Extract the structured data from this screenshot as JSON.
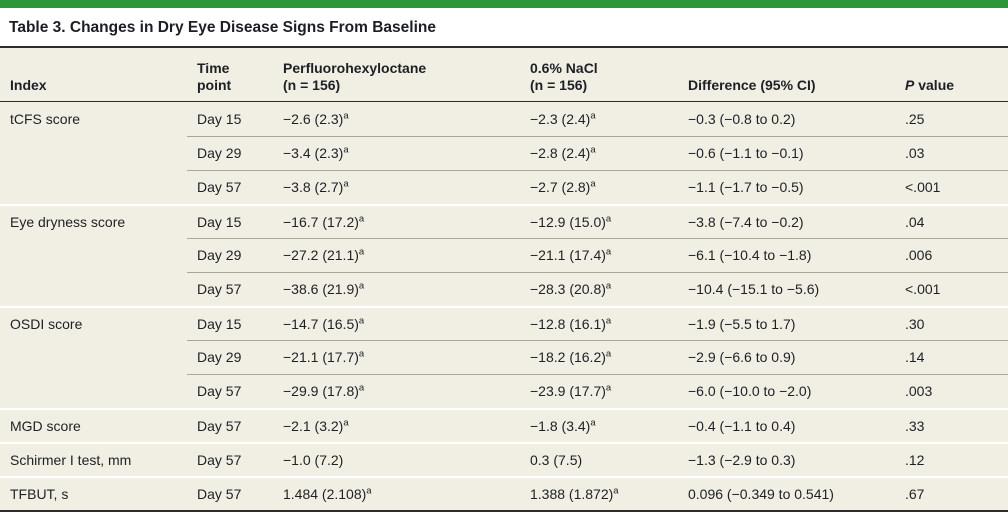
{
  "title": "Table 3. Changes in Dry Eye Disease Signs From Baseline",
  "colors": {
    "accent_green": "#2e9639",
    "row_background": "#f1eee3",
    "rule_dark": "#2e2d29",
    "text": "#1d2025"
  },
  "header": {
    "index": "Index",
    "time_line1": "Time",
    "time_line2": "point",
    "arm1_line1": "Perfluorohexyloctane",
    "arm1_line2": "(n = 156)",
    "arm2_line1": "0.6% NaCl",
    "arm2_line2": "(n = 156)",
    "difference": "Difference (95% CI)",
    "p_italic": "P",
    "p_rest": " value"
  },
  "rows": [
    {
      "index": "tCFS score",
      "time": "Day 15",
      "arm1": "−2.6 (2.3)",
      "arm1_sup": "a",
      "arm2": "−2.3 (2.4)",
      "arm2_sup": "a",
      "diff": "−0.3 (−0.8 to 0.2)",
      "p": ".25"
    },
    {
      "index": "",
      "time": "Day 29",
      "arm1": "−3.4 (2.3)",
      "arm1_sup": "a",
      "arm2": "−2.8 (2.4)",
      "arm2_sup": "a",
      "diff": "−0.6 (−1.1 to −0.1)",
      "p": ".03"
    },
    {
      "index": "",
      "time": "Day 57",
      "arm1": "−3.8 (2.7)",
      "arm1_sup": "a",
      "arm2": "−2.7 (2.8)",
      "arm2_sup": "a",
      "diff": "−1.1 (−1.7 to −0.5)",
      "p": "<.001"
    },
    {
      "index": "Eye dryness score",
      "time": "Day 15",
      "arm1": "−16.7 (17.2)",
      "arm1_sup": "a",
      "arm2": "−12.9 (15.0)",
      "arm2_sup": "a",
      "diff": "−3.8 (−7.4 to −0.2)",
      "p": ".04"
    },
    {
      "index": "",
      "time": "Day 29",
      "arm1": "−27.2 (21.1)",
      "arm1_sup": "a",
      "arm2": "−21.1 (17.4)",
      "arm2_sup": "a",
      "diff": "−6.1 (−10.4 to −1.8)",
      "p": ".006"
    },
    {
      "index": "",
      "time": "Day 57",
      "arm1": "−38.6 (21.9)",
      "arm1_sup": "a",
      "arm2": "−28.3 (20.8)",
      "arm2_sup": "a",
      "diff": "−10.4 (−15.1 to −5.6)",
      "p": "<.001"
    },
    {
      "index": "OSDI score",
      "time": "Day 15",
      "arm1": "−14.7 (16.5)",
      "arm1_sup": "a",
      "arm2": "−12.8 (16.1)",
      "arm2_sup": "a",
      "diff": "−1.9 (−5.5 to 1.7)",
      "p": ".30"
    },
    {
      "index": "",
      "time": "Day 29",
      "arm1": "−21.1 (17.7)",
      "arm1_sup": "a",
      "arm2": "−18.2 (16.2)",
      "arm2_sup": "a",
      "diff": "−2.9 (−6.6 to 0.9)",
      "p": ".14"
    },
    {
      "index": "",
      "time": "Day 57",
      "arm1": "−29.9 (17.8)",
      "arm1_sup": "a",
      "arm2": "−23.9 (17.7)",
      "arm2_sup": "a",
      "diff": "−6.0 (−10.0 to −2.0)",
      "p": ".003"
    },
    {
      "index": "MGD score",
      "time": "Day 57",
      "arm1": "−2.1 (3.2)",
      "arm1_sup": "a",
      "arm2": "−1.8 (3.4)",
      "arm2_sup": "a",
      "diff": "−0.4 (−1.1 to 0.4)",
      "p": ".33"
    },
    {
      "index": "Schirmer I test, mm",
      "time": "Day 57",
      "arm1": "−1.0 (7.2)",
      "arm2": "0.3 (7.5)",
      "diff": "−1.3 (−2.9 to 0.3)",
      "p": ".12"
    },
    {
      "index": "TFBUT, s",
      "time": "Day 57",
      "arm1": "1.484 (2.108)",
      "arm1_sup": "a",
      "arm2": "1.388 (1.872)",
      "arm2_sup": "a",
      "diff": "0.096 (−0.349 to 0.541)",
      "p": ".67"
    }
  ],
  "chart_data": {
    "type": "table",
    "title": "Table 3. Changes in Dry Eye Disease Signs From Baseline",
    "columns": [
      "Index",
      "Time point",
      "Perfluorohexyloctane (n = 156)",
      "0.6% NaCl (n = 156)",
      "Difference (95% CI)",
      "P value"
    ],
    "rows": [
      [
        "tCFS score",
        "Day 15",
        "−2.6 (2.3)ᵃ",
        "−2.3 (2.4)ᵃ",
        "−0.3 (−0.8 to 0.2)",
        ".25"
      ],
      [
        "tCFS score",
        "Day 29",
        "−3.4 (2.3)ᵃ",
        "−2.8 (2.4)ᵃ",
        "−0.6 (−1.1 to −0.1)",
        ".03"
      ],
      [
        "tCFS score",
        "Day 57",
        "−3.8 (2.7)ᵃ",
        "−2.7 (2.8)ᵃ",
        "−1.1 (−1.7 to −0.5)",
        "<.001"
      ],
      [
        "Eye dryness score",
        "Day 15",
        "−16.7 (17.2)ᵃ",
        "−12.9 (15.0)ᵃ",
        "−3.8 (−7.4 to −0.2)",
        ".04"
      ],
      [
        "Eye dryness score",
        "Day 29",
        "−27.2 (21.1)ᵃ",
        "−21.1 (17.4)ᵃ",
        "−6.1 (−10.4 to −1.8)",
        ".006"
      ],
      [
        "Eye dryness score",
        "Day 57",
        "−38.6 (21.9)ᵃ",
        "−28.3 (20.8)ᵃ",
        "−10.4 (−15.1 to −5.6)",
        "<.001"
      ],
      [
        "OSDI score",
        "Day 15",
        "−14.7 (16.5)ᵃ",
        "−12.8 (16.1)ᵃ",
        "−1.9 (−5.5 to 1.7)",
        ".30"
      ],
      [
        "OSDI score",
        "Day 29",
        "−21.1 (17.7)ᵃ",
        "−18.2 (16.2)ᵃ",
        "−2.9 (−6.6 to 0.9)",
        ".14"
      ],
      [
        "OSDI score",
        "Day 57",
        "−29.9 (17.8)ᵃ",
        "−23.9 (17.7)ᵃ",
        "−6.0 (−10.0 to −2.0)",
        ".003"
      ],
      [
        "MGD score",
        "Day 57",
        "−2.1 (3.2)ᵃ",
        "−1.8 (3.4)ᵃ",
        "−0.4 (−1.1 to 0.4)",
        ".33"
      ],
      [
        "Schirmer I test, mm",
        "Day 57",
        "−1.0 (7.2)",
        "0.3 (7.5)",
        "−1.3 (−2.9 to 0.3)",
        ".12"
      ],
      [
        "TFBUT, s",
        "Day 57",
        "1.484 (2.108)ᵃ",
        "1.388 (1.872)ᵃ",
        "0.096 (−0.349 to 0.541)",
        ".67"
      ]
    ]
  }
}
